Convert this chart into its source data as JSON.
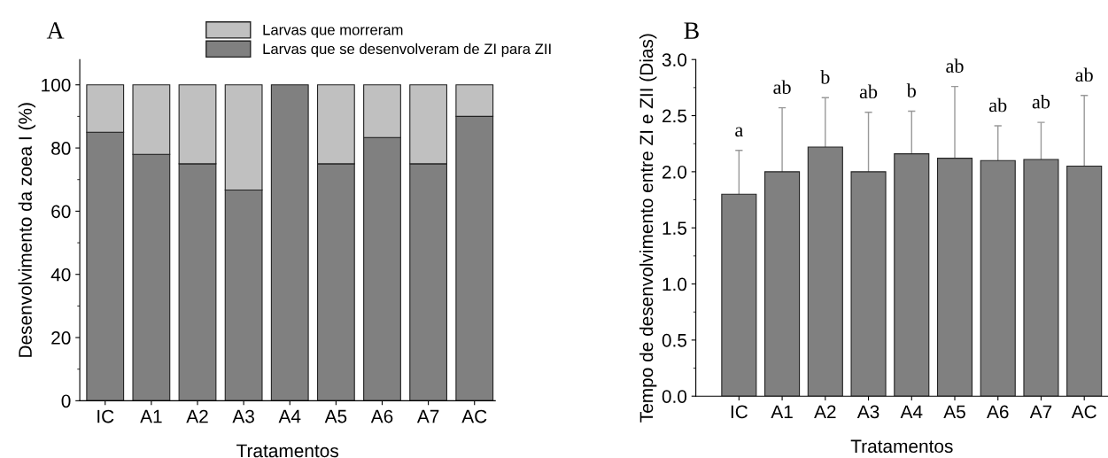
{
  "chart_data": [
    {
      "type": "bar",
      "title": "A",
      "xlabel": "Tratamentos",
      "ylabel": "Desenvolvimento da zoea I (%)",
      "categories": [
        "IC",
        "A1",
        "A2",
        "A3",
        "A4",
        "A5",
        "A6",
        "A7",
        "AC"
      ],
      "stacked": true,
      "legend": "top",
      "ylim": [
        0,
        108
      ],
      "yticks": [
        0,
        20,
        40,
        60,
        80,
        100
      ],
      "series": [
        {
          "name": "Larvas que se desenvolveram de ZI para ZII",
          "color": "#808080",
          "values": [
            85,
            78,
            75,
            66.7,
            100,
            75,
            83.3,
            75,
            90
          ]
        },
        {
          "name": "Larvas que morreram",
          "color": "#c0c0c0",
          "values": [
            15,
            22,
            25,
            33.3,
            null,
            25,
            16.7,
            25,
            10
          ]
        }
      ]
    },
    {
      "type": "bar",
      "title": "B",
      "xlabel": "Tratamentos",
      "ylabel": "Tempo de desenvolvimento entre ZI e ZII (Dias)",
      "categories": [
        "IC",
        "A1",
        "A2",
        "A3",
        "A4",
        "A5",
        "A6",
        "A7",
        "AC"
      ],
      "ylim": [
        0,
        3.0
      ],
      "yticks": [
        {
          "value": 0,
          "label": "0.0"
        },
        0.5,
        {
          "value": 1,
          "label": "1.0"
        },
        1.5,
        {
          "value": 2,
          "label": "2.0"
        },
        2.5,
        {
          "value": 3,
          "label": "3.0"
        }
      ],
      "series": [
        {
          "color": "#808080",
          "values": [
            1.8,
            2.0,
            2.22,
            2.0,
            2.16,
            2.12,
            2.1,
            2.11,
            2.05
          ],
          "errors": [
            [
              1.8,
              2.19
            ],
            [
              2.0,
              2.57
            ],
            [
              2.22,
              2.66
            ],
            [
              2.0,
              2.53
            ],
            [
              2.16,
              2.54
            ],
            [
              2.12,
              2.76
            ],
            [
              2.1,
              2.41
            ],
            [
              2.11,
              2.44
            ],
            [
              2.05,
              2.68
            ]
          ]
        }
      ],
      "annotations": [
        "a",
        "ab",
        "b",
        "ab",
        "b",
        "ab",
        "ab",
        "ab",
        "ab"
      ]
    }
  ]
}
